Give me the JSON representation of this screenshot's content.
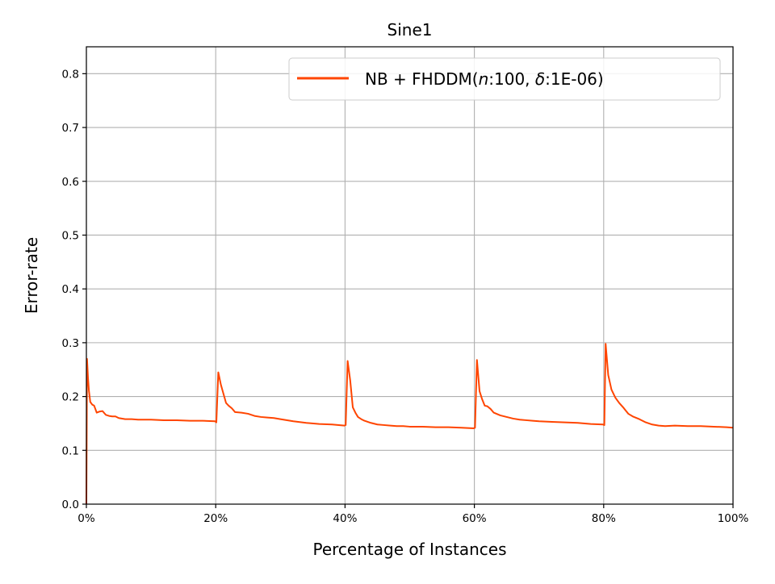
{
  "chart_data": {
    "type": "line",
    "title": "Sine1",
    "xlabel": "Percentage of Instances",
    "ylabel": "Error-rate",
    "xlim": [
      0,
      100
    ],
    "ylim": [
      0,
      0.85
    ],
    "grid": true,
    "legend_position": "top-right",
    "x_ticks": [
      0,
      20,
      40,
      60,
      80,
      100
    ],
    "x_tick_labels": [
      "0%",
      "20%",
      "40%",
      "60%",
      "80%",
      "100%"
    ],
    "y_ticks": [
      0.0,
      0.1,
      0.2,
      0.3,
      0.4,
      0.5,
      0.6,
      0.7,
      0.8
    ],
    "y_tick_labels": [
      "0.0",
      "0.1",
      "0.2",
      "0.3",
      "0.4",
      "0.5",
      "0.6",
      "0.7",
      "0.8"
    ],
    "series": [
      {
        "name": "NB + FHDDM(n:100, δ:1E-06)",
        "legend_parts": [
          {
            "text": "NB + FHDDM(",
            "italic": false
          },
          {
            "text": "n",
            "italic": true
          },
          {
            "text": ":100, ",
            "italic": false
          },
          {
            "text": "δ",
            "italic": true
          },
          {
            "text": ":1E-06)",
            "italic": false
          }
        ],
        "color": "#ff4500",
        "x": [
          0,
          0.1,
          0.25,
          0.4,
          0.6,
          0.9,
          1.2,
          1.6,
          2.0,
          2.5,
          3.0,
          3.5,
          4.0,
          4.5,
          5,
          6,
          7,
          8,
          9,
          10,
          12,
          14,
          16,
          18,
          19.9,
          20.1,
          20.4,
          20.8,
          21.2,
          21.6,
          22,
          22.5,
          23,
          24,
          25,
          26,
          27,
          28,
          29,
          30,
          32,
          34,
          36,
          38,
          39.9,
          40.1,
          40.4,
          40.8,
          41.2,
          41.6,
          42,
          42.5,
          43,
          44,
          45,
          46,
          47,
          48,
          49,
          50,
          52,
          54,
          56,
          58,
          59.9,
          60.1,
          60.4,
          60.8,
          61.2,
          61.6,
          62,
          62.5,
          63,
          64,
          65,
          66,
          67,
          68,
          69,
          70,
          72,
          74,
          76,
          78,
          79.9,
          80.1,
          80.3,
          80.7,
          81.2,
          81.8,
          82.4,
          83,
          83.8,
          84.5,
          85.5,
          86.5,
          87.5,
          88.5,
          89.5,
          91,
          93,
          95,
          97,
          99,
          100
        ],
        "y": [
          0.0,
          0.27,
          0.235,
          0.21,
          0.19,
          0.185,
          0.183,
          0.17,
          0.172,
          0.173,
          0.166,
          0.164,
          0.163,
          0.163,
          0.16,
          0.158,
          0.158,
          0.157,
          0.157,
          0.157,
          0.156,
          0.156,
          0.155,
          0.155,
          0.154,
          0.152,
          0.245,
          0.222,
          0.205,
          0.188,
          0.183,
          0.178,
          0.171,
          0.17,
          0.168,
          0.164,
          0.162,
          0.161,
          0.16,
          0.158,
          0.154,
          0.151,
          0.149,
          0.148,
          0.146,
          0.147,
          0.266,
          0.23,
          0.18,
          0.17,
          0.162,
          0.158,
          0.155,
          0.151,
          0.148,
          0.147,
          0.146,
          0.145,
          0.145,
          0.144,
          0.144,
          0.143,
          0.143,
          0.142,
          0.141,
          0.142,
          0.268,
          0.21,
          0.195,
          0.183,
          0.182,
          0.177,
          0.17,
          0.165,
          0.162,
          0.159,
          0.157,
          0.156,
          0.155,
          0.154,
          0.153,
          0.152,
          0.151,
          0.149,
          0.148,
          0.147,
          0.298,
          0.24,
          0.213,
          0.198,
          0.188,
          0.18,
          0.168,
          0.163,
          0.158,
          0.152,
          0.148,
          0.146,
          0.145,
          0.146,
          0.145,
          0.145,
          0.144,
          0.143,
          0.142
        ]
      }
    ]
  }
}
